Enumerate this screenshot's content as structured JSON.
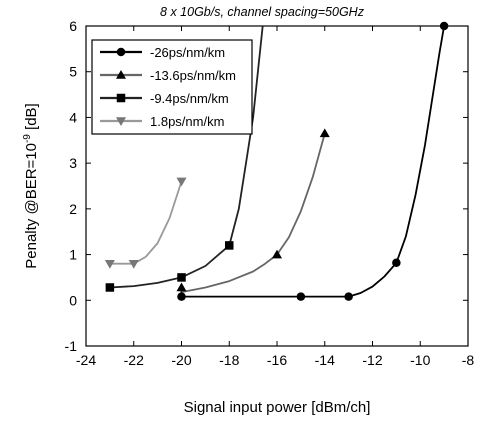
{
  "chart_data": {
    "type": "line",
    "title": "8 x 10Gb/s, channel spacing=50GHz",
    "xlabel": "Signal input power [dBm/ch]",
    "ylabel_parts": [
      "Penalty @BER=10",
      "-9",
      " [dB]"
    ],
    "xlim": [
      -24,
      -8
    ],
    "ylim": [
      -1,
      6
    ],
    "xticks": [
      -24,
      -22,
      -20,
      -18,
      -16,
      -14,
      -12,
      -10,
      -8
    ],
    "yticks": [
      -1,
      0,
      1,
      2,
      3,
      4,
      5,
      6
    ],
    "grid": false,
    "legend_position": "top-left",
    "series": [
      {
        "name": "-26ps/nm/km",
        "marker": "circle",
        "color": "#000000",
        "points": [
          [
            -20,
            0.08
          ],
          [
            -15,
            0.08
          ],
          [
            -13,
            0.08
          ],
          [
            -11,
            0.82
          ],
          [
            -9,
            6.0
          ]
        ],
        "curve": [
          [
            -20,
            0.25
          ],
          [
            -20,
            0.08
          ],
          [
            -13,
            0.08
          ],
          [
            -12.5,
            0.16
          ],
          [
            -12,
            0.3
          ],
          [
            -11.5,
            0.52
          ],
          [
            -11,
            0.82
          ],
          [
            -10.6,
            1.4
          ],
          [
            -10.2,
            2.3
          ],
          [
            -9.8,
            3.4
          ],
          [
            -9.5,
            4.4
          ],
          [
            -9.2,
            5.4
          ],
          [
            -9,
            6.0
          ]
        ]
      },
      {
        "name": "-13.6ps/nm/km",
        "marker": "triangle-up",
        "color": "#666666",
        "points": [
          [
            -20,
            0.28
          ],
          [
            -16,
            1.0
          ],
          [
            -14,
            3.65
          ]
        ],
        "curve": [
          [
            -20,
            0.18
          ],
          [
            -19,
            0.28
          ],
          [
            -18,
            0.42
          ],
          [
            -17,
            0.63
          ],
          [
            -16.5,
            0.8
          ],
          [
            -16,
            1.0
          ],
          [
            -15.5,
            1.38
          ],
          [
            -15,
            1.95
          ],
          [
            -14.5,
            2.7
          ],
          [
            -14,
            3.65
          ]
        ]
      },
      {
        "name": "-9.4ps/nm/km",
        "marker": "square",
        "color": "#222222",
        "points": [
          [
            -23,
            0.28
          ],
          [
            -20,
            0.5
          ],
          [
            -18,
            1.2
          ]
        ],
        "curve": [
          [
            -23,
            0.28
          ],
          [
            -22,
            0.31
          ],
          [
            -21,
            0.38
          ],
          [
            -20,
            0.5
          ],
          [
            -19,
            0.75
          ],
          [
            -18,
            1.2
          ],
          [
            -17.6,
            2.0
          ],
          [
            -17.3,
            3.0
          ],
          [
            -17.0,
            4.0
          ],
          [
            -16.8,
            5.0
          ],
          [
            -16.6,
            6.0
          ]
        ]
      },
      {
        "name": "1.8ps/nm/km",
        "marker": "triangle-down",
        "color": "#999999",
        "points": [
          [
            -23,
            0.8
          ],
          [
            -22,
            0.8
          ],
          [
            -20,
            2.6
          ]
        ],
        "curve": [
          [
            -23,
            0.8
          ],
          [
            -22,
            0.8
          ],
          [
            -21.5,
            0.95
          ],
          [
            -21,
            1.25
          ],
          [
            -20.5,
            1.8
          ],
          [
            -20,
            2.6
          ]
        ]
      }
    ]
  }
}
